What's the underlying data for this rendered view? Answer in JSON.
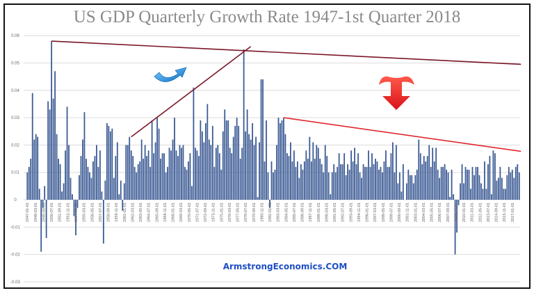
{
  "chart_data": {
    "type": "bar",
    "title": "US GDP Quarterly Growth Rate 1947-1st Quarter 2018",
    "xlabel": "",
    "ylabel": "",
    "x_range": [
      "1947-01-01",
      "2018-01-01"
    ],
    "ylim": [
      -0.03,
      0.06
    ],
    "yticks": [
      "0.06",
      "0.05",
      "0.04",
      "0.03",
      "0.02",
      "0.01",
      "0",
      "-0.01",
      "-0.02",
      "-0.03"
    ],
    "ytick_values": [
      0.06,
      0.05,
      0.04,
      0.03,
      0.02,
      0.01,
      0,
      -0.01,
      -0.02,
      -0.03
    ],
    "grid": true,
    "bar_color": "#3b5a94",
    "xticks": [
      "1947-01-01",
      "1948-03-01",
      "1949-05-01",
      "1950-07-01",
      "1951-09-01",
      "1952-11-01",
      "1954-01-01",
      "1955-03-01",
      "1956-05-01",
      "1957-07-01",
      "1958-09-01",
      "1959-11-01",
      "1961-01-01",
      "1962-03-01",
      "1963-05-01",
      "1964-07-01",
      "1965-09-01",
      "1966-11-01",
      "1968-01-01",
      "1969-03-01",
      "1970-05-01",
      "1971-07-01",
      "1972-09-01",
      "1973-11-01",
      "1975-01-01",
      "1976-03-01",
      "1977-05-01",
      "1978-07-01",
      "1979-09-01",
      "1980-11-01",
      "1982-01-01",
      "1983-03-01",
      "1984-05-01",
      "1985-07-01",
      "1986-09-01",
      "1987-11-01",
      "1989-01-01",
      "1990-03-01",
      "1991-05-01",
      "1992-07-01",
      "1993-09-01",
      "1994-11-01",
      "1996-01-01",
      "1997-03-01",
      "1998-05-01",
      "1999-07-01",
      "2000-09-01",
      "2001-11-01",
      "2003-01-01",
      "2004-03-01",
      "2005-05-01",
      "2006-07-01",
      "2007-09-01",
      "2008-11-01",
      "2010-01-01",
      "2011-03-01",
      "2012-05-01",
      "2013-07-01",
      "2014-09-01",
      "2015-11-01",
      "2017-01-01"
    ],
    "values": [
      0.01,
      0.012,
      0.015,
      0.039,
      0.022,
      0.024,
      0.023,
      0.004,
      -0.019,
      -0.003,
      0.005,
      -0.014,
      0.036,
      0.033,
      0.058,
      0.037,
      0.047,
      0.024,
      0.015,
      0.013,
      0.003,
      0.006,
      0.018,
      0.034,
      0.02,
      0.008,
      0.002,
      -0.006,
      -0.013,
      -0.003,
      0.009,
      0.016,
      0.022,
      0.032,
      0.015,
      0.012,
      0.01,
      0.008,
      0.014,
      0.016,
      0.02,
      0.012,
      0.018,
      0.003,
      -0.016,
      0.007,
      0.028,
      0.027,
      0.025,
      0.026,
      0.008,
      0.016,
      0.021,
      0.002,
      0.007,
      -0.004,
      0.006,
      0.02,
      0.02,
      0.023,
      0.018,
      0.016,
      0.012,
      0.01,
      0.013,
      0.014,
      0.022,
      0.015,
      0.02,
      0.016,
      0.018,
      0.012,
      0.029,
      0.017,
      0.021,
      0.03,
      0.026,
      0.015,
      0.017,
      0.017,
      0.01,
      0.012,
      0.019,
      0.018,
      0.022,
      0.03,
      0.018,
      0.016,
      0.02,
      0.019,
      0.02,
      0.012,
      0.011,
      0.014,
      0.017,
      0.005,
      0.041,
      0.019,
      0.018,
      0.016,
      0.029,
      0.025,
      0.021,
      0.028,
      0.035,
      0.022,
      0.02,
      0.027,
      0.012,
      0.019,
      0.02,
      0.017,
      0.011,
      0.025,
      0.033,
      0.029,
      0.029,
      0.019,
      0.017,
      0.023,
      0.027,
      0.03,
      0.027,
      0.015,
      0.019,
      0.055,
      0.025,
      0.033,
      0.024,
      0.022,
      0.028,
      0.02,
      0.023,
      0.001,
      0.021,
      0.044,
      0.044,
      0.014,
      0.029,
      0.01,
      -0.003,
      0.014,
      0.01,
      0.011,
      0.02,
      0.03,
      0.028,
      0.029,
      0.03,
      0.024,
      0.017,
      0.016,
      0.021,
      0.014,
      0.018,
      0.012,
      0.014,
      0.008,
      0.013,
      0.011,
      0.014,
      0.018,
      0.015,
      0.023,
      0.014,
      0.021,
      0.015,
      0.02,
      0.019,
      0.015,
      0.013,
      0.01,
      0.02,
      0.016,
      0.01,
      0.002,
      0.01,
      0.013,
      0.01,
      0.012,
      0.017,
      0.013,
      0.013,
      0.017,
      0.009,
      0.013,
      0.011,
      0.018,
      0.014,
      0.019,
      0.013,
      0.017,
      0.01,
      0.008,
      0.013,
      0.012,
      0.012,
      0.018,
      0.012,
      0.017,
      0.013,
      0.015,
      0.014,
      0.011,
      0.012,
      0.01,
      0.014,
      0.018,
      0.012,
      0.012,
      0.017,
      0.021,
      0.01,
      0.02,
      0.006,
      0.01,
      0.003,
      0.013,
      0.0,
      0.006,
      0.011,
      0.009,
      0.009,
      0.006,
      0.009,
      0.011,
      0.022,
      0.017,
      0.013,
      0.016,
      0.014,
      0.016,
      0.02,
      0.012,
      0.019,
      0.014,
      0.019,
      0.011,
      0.008,
      0.012,
      0.012,
      0.013,
      0.011,
      0.01,
      0.001,
      0.011,
      0.002,
      -0.02,
      -0.012,
      -0.002,
      0.006,
      0.013,
      0.006,
      0.012,
      0.011,
      0.011,
      0.004,
      0.012,
      0.009,
      0.012,
      0.012,
      0.009,
      0.006,
      0.004,
      0.014,
      0.004,
      0.013,
      0.016,
      0.002,
      0.018,
      0.017,
      0.007,
      0.008,
      0.012,
      0.008,
      0.004,
      0.004,
      0.009,
      0.012,
      0.01,
      0.011,
      0.008,
      0.012,
      0.013,
      0.01
    ],
    "trend_lines": [
      {
        "from": [
          "1950-07-01",
          0.058
        ],
        "to": [
          "2018-04-01",
          0.0495
        ],
        "color": "#7a1626"
      },
      {
        "from": [
          "1962-01-01",
          0.023
        ],
        "to": [
          "1979-04-01",
          0.056
        ],
        "color": "#7a1626"
      },
      {
        "from": [
          "1984-01-01",
          0.03
        ],
        "to": [
          "2018-04-01",
          0.0177
        ],
        "color": "#e0282e"
      }
    ],
    "annotations": {
      "up_arrow_icon": "blue-curved-up-arrow",
      "down_arrow_icon": "red-down-arrow"
    }
  },
  "watermark": "ArmstrongEconomics.COM"
}
